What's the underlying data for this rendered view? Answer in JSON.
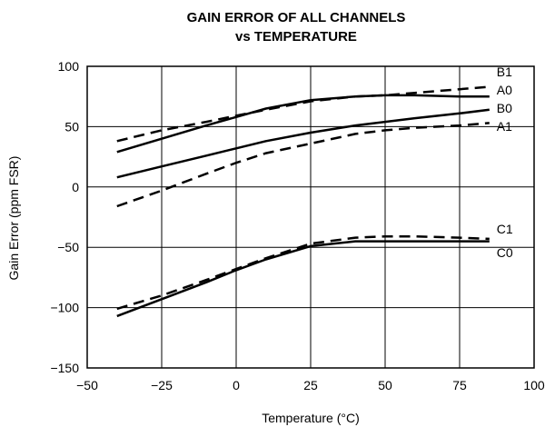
{
  "chart_data": {
    "type": "line",
    "title": [
      "GAIN ERROR OF ALL CHANNELS",
      "vs TEMPERATURE"
    ],
    "xlabel": "Temperature (°C)",
    "ylabel": "Gain Error (ppm FSR)",
    "xlim": [
      -50,
      100
    ],
    "ylim": [
      -150,
      100
    ],
    "xticks": [
      -50,
      -25,
      0,
      25,
      50,
      75,
      100
    ],
    "xtick_labels": [
      "−50",
      "−25",
      "0",
      "25",
      "50",
      "75",
      "100"
    ],
    "yticks": [
      -150,
      -100,
      -50,
      0,
      50,
      100
    ],
    "ytick_labels": [
      "−150",
      "−100",
      "−50",
      "0",
      "50",
      "100"
    ],
    "grid": true,
    "series": [
      {
        "name": "B1",
        "style": "dashed",
        "x": [
          -40,
          -25,
          -10,
          0,
          10,
          25,
          40,
          50,
          60,
          75,
          85
        ],
        "y": [
          38,
          47,
          54,
          59,
          64,
          71,
          75,
          76,
          78,
          81,
          83
        ]
      },
      {
        "name": "A0",
        "style": "solid",
        "x": [
          -40,
          -25,
          -10,
          0,
          10,
          25,
          40,
          50,
          60,
          75,
          85
        ],
        "y": [
          29,
          40,
          51,
          58,
          65,
          72,
          75,
          76,
          76,
          75,
          75
        ]
      },
      {
        "name": "B0",
        "style": "solid",
        "x": [
          -40,
          -25,
          -10,
          0,
          10,
          25,
          40,
          50,
          60,
          75,
          85
        ],
        "y": [
          8,
          17,
          26,
          32,
          38,
          45,
          51,
          54,
          57,
          61,
          64
        ]
      },
      {
        "name": "A1",
        "style": "dashed",
        "x": [
          -40,
          -25,
          -10,
          0,
          10,
          25,
          40,
          50,
          60,
          75,
          85
        ],
        "y": [
          -16,
          -3,
          11,
          20,
          28,
          36,
          44,
          47,
          49,
          51,
          53
        ]
      },
      {
        "name": "C1",
        "style": "dashed",
        "x": [
          -40,
          -25,
          -10,
          0,
          10,
          25,
          40,
          50,
          60,
          75,
          85
        ],
        "y": [
          -101,
          -90,
          -77,
          -68,
          -59,
          -47,
          -42,
          -41,
          -41,
          -42,
          -43
        ]
      },
      {
        "name": "C0",
        "style": "solid",
        "x": [
          -40,
          -25,
          -10,
          0,
          10,
          25,
          40,
          50,
          60,
          75,
          85
        ],
        "y": [
          -107,
          -93,
          -79,
          -69,
          -60,
          -49,
          -45,
          -45,
          -45,
          -45,
          -45
        ]
      }
    ]
  }
}
